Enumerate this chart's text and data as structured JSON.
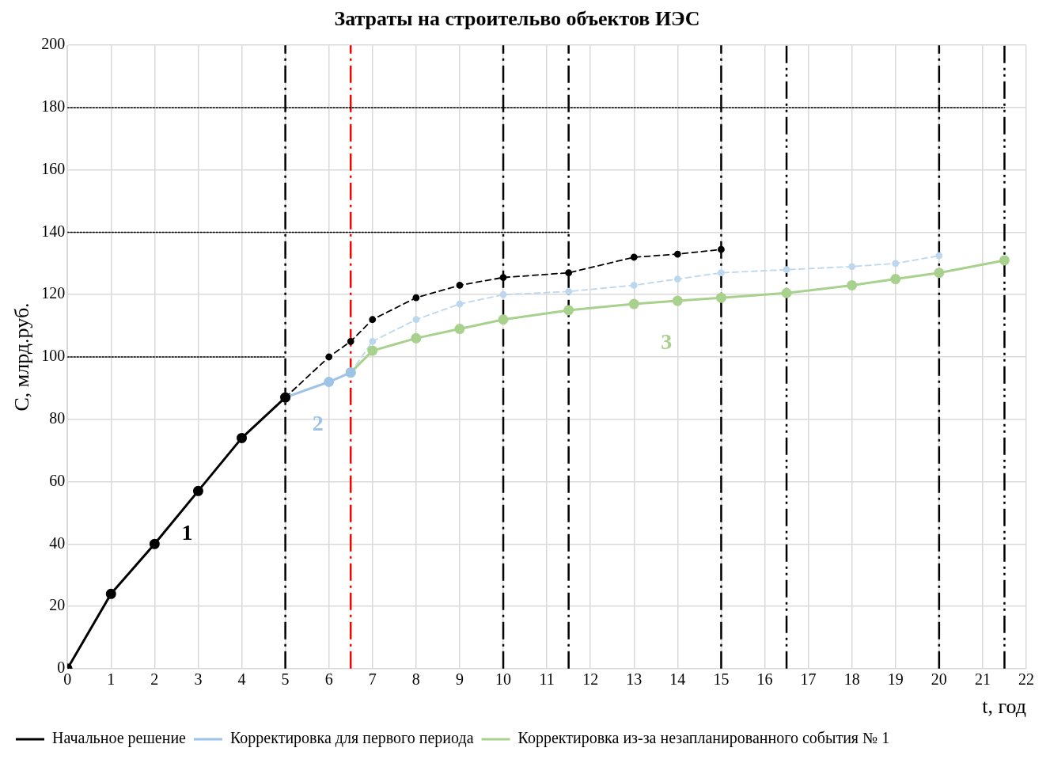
{
  "chart_data": {
    "type": "line",
    "title": "Затраты на строительво объектов ИЭС",
    "xlabel": "t, год",
    "ylabel": "С, млрд.руб.",
    "xlim": [
      0,
      22
    ],
    "xticks": [
      0,
      1,
      2,
      3,
      4,
      5,
      6,
      7,
      8,
      9,
      10,
      11,
      12,
      13,
      14,
      15,
      16,
      17,
      18,
      19,
      20,
      21,
      22
    ],
    "ylim": [
      0,
      200
    ],
    "yticks": [
      0,
      20,
      40,
      60,
      80,
      100,
      120,
      140,
      160,
      180,
      200
    ],
    "grid": true,
    "legend": "bottom left",
    "marker": "circle",
    "series": [
      {
        "name": "Начальное решение",
        "color": "#000000",
        "x": [
          0,
          1,
          2,
          3,
          4,
          5
        ],
        "values": [
          0,
          24,
          40,
          57,
          74,
          87
        ]
      },
      {
        "name": "Корректировка для первого периода",
        "color": "#9dc3e6",
        "x": [
          5,
          6,
          6.5
        ],
        "values": [
          87,
          92,
          95
        ]
      },
      {
        "name": "Корректировка из-за незапланированного события № 1",
        "color": "#a9d18e",
        "x": [
          6.5,
          7,
          8,
          9,
          10,
          11.5,
          13,
          14,
          15,
          16.5,
          18,
          19,
          20,
          21.5
        ],
        "values": [
          95,
          102,
          106,
          109,
          112,
          115,
          117,
          118,
          119,
          120.5,
          123,
          125,
          127,
          131
        ]
      },
      {
        "color": "#000000",
        "line_style": "dashed",
        "x": [
          5,
          6,
          6.5,
          7,
          8,
          9,
          10,
          11.5,
          13,
          14,
          15
        ],
        "values": [
          87,
          100,
          105,
          112,
          119,
          123,
          125.5,
          127,
          132,
          133,
          134.5
        ]
      },
      {
        "color": "#bdd7ee",
        "line_style": "dashed",
        "x": [
          6.5,
          7,
          8,
          9,
          10,
          11.5,
          13,
          14,
          15,
          16.5,
          18,
          19,
          20
        ],
        "values": [
          95,
          105,
          112,
          117,
          120,
          121,
          123,
          125,
          127,
          128,
          129,
          130,
          132.5
        ]
      },
      {
        "color": "#000000",
        "line_style": "dotted",
        "marker": "none",
        "x": [
          0,
          5
        ],
        "values": [
          100,
          100
        ]
      },
      {
        "color": "#000000",
        "line_style": "dotted",
        "marker": "none",
        "x": [
          0,
          11.5
        ],
        "values": [
          140,
          140
        ]
      },
      {
        "color": "#000000",
        "line_style": "dotted",
        "marker": "none",
        "x": [
          0,
          21.5
        ],
        "values": [
          180,
          180
        ]
      }
    ],
    "ref_lines": [
      {
        "axis": "x",
        "value": 5,
        "color": "#000000",
        "line_style": "dashed"
      },
      {
        "axis": "x",
        "value": 6.5,
        "color": "#ff0000",
        "line_style": "dashed"
      },
      {
        "axis": "x",
        "value": 10,
        "color": "#000000",
        "line_style": "dashed"
      },
      {
        "axis": "x",
        "value": 11.5,
        "color": "#000000",
        "line_style": "dashed"
      },
      {
        "axis": "x",
        "value": 15,
        "color": "#000000",
        "line_style": "dashed"
      },
      {
        "axis": "x",
        "value": 16.5,
        "color": "#000000",
        "line_style": "dotted"
      },
      {
        "axis": "x",
        "value": 20,
        "color": "#000000",
        "line_style": "dashed"
      },
      {
        "axis": "x",
        "value": 21.5,
        "color": "#000000",
        "line_style": "dotted"
      }
    ],
    "annotations": [
      "1",
      "2",
      "3"
    ]
  }
}
